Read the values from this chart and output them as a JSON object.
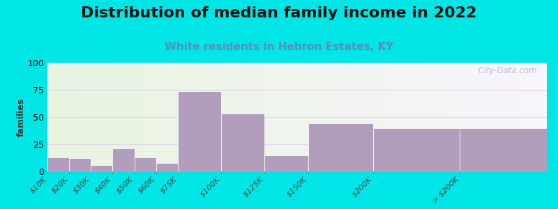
{
  "title": "Distribution of median family income in 2022",
  "subtitle": "White residents in Hebron Estates, KY",
  "ylabel": "families",
  "categories": [
    "$10K",
    "$20K",
    "$30K",
    "$40K",
    "$50K",
    "$60K",
    "$75K",
    "$100K",
    "$125K",
    "$150K",
    "$200K",
    "> $200K"
  ],
  "values": [
    13,
    12,
    6,
    21,
    13,
    8,
    74,
    53,
    15,
    44,
    40,
    40
  ],
  "bar_left_edges": [
    0,
    1,
    2,
    3,
    4,
    5,
    6,
    8,
    10,
    12,
    15,
    19
  ],
  "bar_widths": [
    1,
    1,
    1,
    1,
    1,
    1,
    2,
    2,
    2,
    3,
    4,
    4
  ],
  "bar_color": "#b39dbd",
  "ylim": [
    0,
    100
  ],
  "yticks": [
    0,
    25,
    50,
    75,
    100
  ],
  "background_outer": "#00e5e5",
  "background_inner_left": "#e8f5e0",
  "background_inner_right": "#f8f4fc",
  "grid_color": "#e0d8e8",
  "title_fontsize": 16,
  "subtitle_fontsize": 11,
  "subtitle_color": "#5b8db8",
  "ylabel_fontsize": 9,
  "tick_label_fontsize": 8,
  "watermark_text": "  City-Data.com",
  "watermark_color": "#a8b8c8"
}
